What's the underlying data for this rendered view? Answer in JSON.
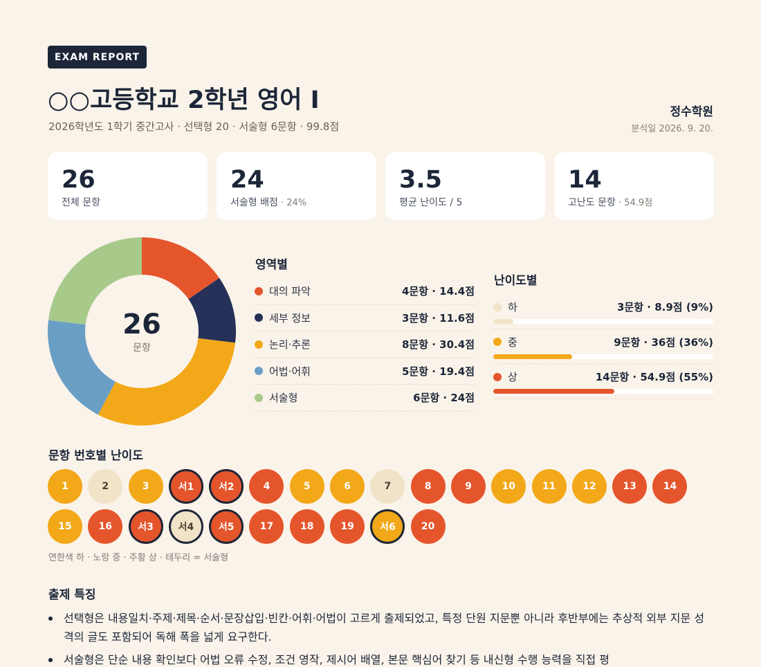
{
  "header": {
    "badge": "EXAM REPORT",
    "title": "○○고등학교 2학년 영어 I",
    "subtitle": "2026학년도 1학기 중간고사 · 선택형 20 · 서술형 6문항 · 99.8점",
    "org": "정수학원",
    "date": "분석일 2026. 9. 20."
  },
  "stats": [
    {
      "value": "26",
      "label": "전체 문항",
      "sub": ""
    },
    {
      "value": "24",
      "label": "서술형 배점",
      "sub": " · 24%"
    },
    {
      "value": "3.5",
      "label": "평균 난이도 / 5",
      "sub": ""
    },
    {
      "value": "14",
      "label": "고난도 문항",
      "sub": " · 54.9점"
    }
  ],
  "donut": {
    "center_value": "26",
    "center_unit": "문항"
  },
  "chart_data": {
    "type": "pie",
    "categories": [
      "대의 파악",
      "세부 정보",
      "논리·추론",
      "어법·어휘",
      "서술형"
    ],
    "values": [
      4,
      3,
      8,
      5,
      6
    ],
    "colors": [
      "#e5552c",
      "#263058",
      "#f2a818",
      "#6a9fc5",
      "#a7c98a"
    ]
  },
  "areas": {
    "title": "영역별",
    "items": [
      {
        "label": "대의 파악",
        "value": "4문항 · 14.4점",
        "color": "#e5552c"
      },
      {
        "label": "세부 정보",
        "value": "3문항 · 11.6점",
        "color": "#263058"
      },
      {
        "label": "논리·추론",
        "value": "8문항 · 30.4점",
        "color": "#f2a818"
      },
      {
        "label": "어법·어휘",
        "value": "5문항 · 19.4점",
        "color": "#6a9fc5"
      },
      {
        "label": "서술형",
        "value": "6문항 · 24점",
        "color": "#a7c98a"
      }
    ]
  },
  "difficulty": {
    "title": "난이도별",
    "items": [
      {
        "label": "하",
        "value": "3문항 · 8.9점 (9%)",
        "percent": 9,
        "color": "#f1e3c8"
      },
      {
        "label": "중",
        "value": "9문항 · 36점 (36%)",
        "percent": 36,
        "color": "#f2a818"
      },
      {
        "label": "상",
        "value": "14문항 · 54.9점 (55%)",
        "percent": 55,
        "color": "#e5552c"
      }
    ]
  },
  "questions": {
    "title": "문항 번호별 난이도",
    "colors": {
      "low": "#f1e3c8",
      "mid": "#f2a818",
      "high": "#e5552c"
    },
    "rows": [
      [
        {
          "label": "1",
          "level": "mid",
          "essay": false
        },
        {
          "label": "2",
          "level": "low",
          "essay": false
        },
        {
          "label": "3",
          "level": "mid",
          "essay": false
        },
        {
          "label": "서1",
          "level": "high",
          "essay": true
        },
        {
          "label": "서2",
          "level": "high",
          "essay": true
        },
        {
          "label": "4",
          "level": "high",
          "essay": false
        },
        {
          "label": "5",
          "level": "mid",
          "essay": false
        },
        {
          "label": "6",
          "level": "mid",
          "essay": false
        },
        {
          "label": "7",
          "level": "low",
          "essay": false
        },
        {
          "label": "8",
          "level": "high",
          "essay": false
        },
        {
          "label": "9",
          "level": "high",
          "essay": false
        },
        {
          "label": "10",
          "level": "mid",
          "essay": false
        },
        {
          "label": "11",
          "level": "mid",
          "essay": false
        },
        {
          "label": "12",
          "level": "mid",
          "essay": false
        },
        {
          "label": "13",
          "level": "high",
          "essay": false
        },
        {
          "label": "14",
          "level": "high",
          "essay": false
        }
      ],
      [
        {
          "label": "15",
          "level": "mid",
          "essay": false
        },
        {
          "label": "16",
          "level": "high",
          "essay": false
        },
        {
          "label": "서3",
          "level": "high",
          "essay": true
        },
        {
          "label": "서4",
          "level": "low",
          "essay": true
        },
        {
          "label": "서5",
          "level": "high",
          "essay": true
        },
        {
          "label": "17",
          "level": "high",
          "essay": false
        },
        {
          "label": "18",
          "level": "high",
          "essay": false
        },
        {
          "label": "19",
          "level": "high",
          "essay": false
        },
        {
          "label": "서6",
          "level": "mid",
          "essay": true
        },
        {
          "label": "20",
          "level": "high",
          "essay": false
        }
      ]
    ],
    "legend": "연한색 하 · 노랑 중 · 주황 상 · 테두리 = 서술형"
  },
  "features": {
    "title": "출제 특징",
    "items": [
      "선택형은 내용일치·주제·제목·순서·문장삽입·빈칸·어휘·어법이 고르게 출제되었고, 특정 단원 지문뿐 아니라 후반부에는 추상적 외부 지문 성격의 글도 포함되어 독해 폭을 넓게 요구한다.",
      "서술형은 단순 내용 확인보다 어법 오류 수정, 조건 영작, 제시어 배열, 본문 핵심어 찾기 등 내신형 수행 능력을 직접 평"
    ]
  }
}
